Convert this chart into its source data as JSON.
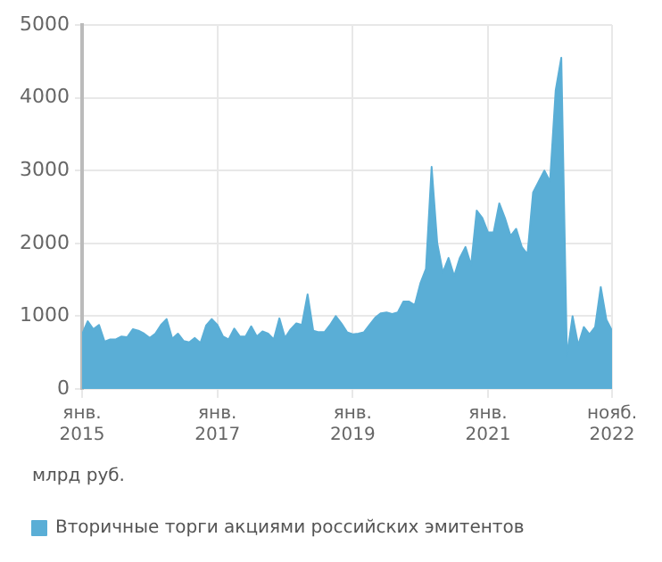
{
  "chart_data": {
    "type": "area",
    "annotations": [
      "млрд руб."
    ],
    "legend": "bottom left",
    "grid": true,
    "x": [
      "2015-01",
      "2015-02",
      "2015-03",
      "2015-04",
      "2015-05",
      "2015-06",
      "2015-07",
      "2015-08",
      "2015-09",
      "2015-10",
      "2015-11",
      "2015-12",
      "2016-01",
      "2016-02",
      "2016-03",
      "2016-04",
      "2016-05",
      "2016-06",
      "2016-07",
      "2016-08",
      "2016-09",
      "2016-10",
      "2016-11",
      "2016-12",
      "2017-01",
      "2017-02",
      "2017-03",
      "2017-04",
      "2017-05",
      "2017-06",
      "2017-07",
      "2017-08",
      "2017-09",
      "2017-10",
      "2017-11",
      "2017-12",
      "2018-01",
      "2018-02",
      "2018-03",
      "2018-04",
      "2018-05",
      "2018-06",
      "2018-07",
      "2018-08",
      "2018-09",
      "2018-10",
      "2018-11",
      "2018-12",
      "2019-01",
      "2019-02",
      "2019-03",
      "2019-04",
      "2019-05",
      "2019-06",
      "2019-07",
      "2019-08",
      "2019-09",
      "2019-10",
      "2019-11",
      "2019-12",
      "2020-01",
      "2020-02",
      "2020-03",
      "2020-04",
      "2020-05",
      "2020-06",
      "2020-07",
      "2020-08",
      "2020-09",
      "2020-10",
      "2020-11",
      "2020-12",
      "2021-01",
      "2021-02",
      "2021-03",
      "2021-04",
      "2021-05",
      "2021-06",
      "2021-07",
      "2021-08",
      "2021-09",
      "2021-10",
      "2021-11",
      "2021-12",
      "2022-01",
      "2022-02",
      "2022-03",
      "2022-04",
      "2022-05",
      "2022-06",
      "2022-07",
      "2022-08",
      "2022-09",
      "2022-10",
      "2022-11"
    ],
    "xlim": [
      "2015-01",
      "2022-11"
    ],
    "xticks": [
      {
        "value": "2015-01",
        "label": "янв.\n2015"
      },
      {
        "value": "2017-01",
        "label": "янв.\n2017"
      },
      {
        "value": "2019-01",
        "label": "янв.\n2019"
      },
      {
        "value": "2021-01",
        "label": "янв.\n2021"
      },
      {
        "value": "2022-11",
        "label": "нояб.\n2022"
      }
    ],
    "ylim": [
      0,
      5000
    ],
    "yticks": [
      0,
      1000,
      2000,
      3000,
      4000,
      5000
    ],
    "series": [
      {
        "name": "Вторичные торги акциями российских эмитентов",
        "color": "#5aaed6",
        "values": [
          750,
          930,
          820,
          880,
          650,
          680,
          680,
          720,
          710,
          820,
          800,
          760,
          700,
          760,
          880,
          960,
          690,
          760,
          660,
          640,
          700,
          630,
          870,
          960,
          880,
          720,
          680,
          830,
          720,
          720,
          860,
          720,
          790,
          760,
          680,
          970,
          700,
          820,
          900,
          880,
          1300,
          800,
          780,
          780,
          880,
          1000,
          900,
          780,
          750,
          760,
          780,
          880,
          980,
          1040,
          1050,
          1030,
          1050,
          1200,
          1200,
          1150,
          1450,
          1650,
          3050,
          2000,
          1600,
          1800,
          1550,
          1800,
          1950,
          1700,
          2450,
          2350,
          2150,
          2150,
          2550,
          2350,
          2100,
          2200,
          1950,
          1850,
          2700,
          2850,
          3000,
          2850,
          4100,
          4550,
          450,
          1000,
          600,
          850,
          750,
          850,
          1400,
          950,
          800
        ]
      }
    ]
  }
}
